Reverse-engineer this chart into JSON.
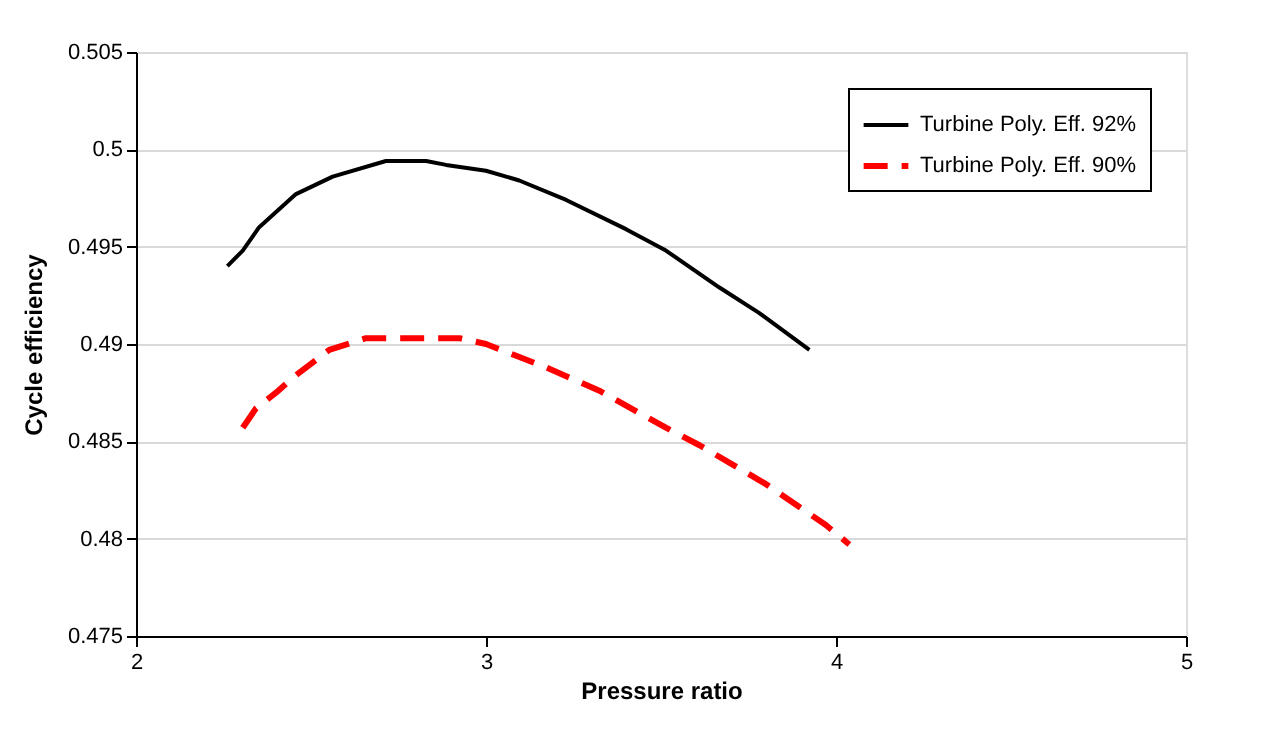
{
  "chart_data": {
    "type": "line",
    "xlabel": "Pressure ratio",
    "ylabel": "Cycle efficiency",
    "xlim": [
      2,
      5
    ],
    "xticks": [
      2,
      3,
      4,
      5
    ],
    "ylim": [
      0.475,
      0.505
    ],
    "yticks": [
      0.475,
      0.48,
      0.485,
      0.49,
      0.495,
      0.5,
      0.505
    ],
    "grid": "y",
    "legend": "top right",
    "marker": "none",
    "series": [
      {
        "name": "Turbine Poly. Eff. 92%",
        "color": "#000000",
        "line_style": "solid",
        "x": [
          2.261,
          2.305,
          2.352,
          2.457,
          2.562,
          2.714,
          2.829,
          2.886,
          3.0,
          3.095,
          3.229,
          3.4,
          3.514,
          3.667,
          3.78,
          3.924
        ],
        "values": [
          0.494,
          0.4948,
          0.496,
          0.4977,
          0.4986,
          0.4994,
          0.4994,
          0.4992,
          0.4989,
          0.4984,
          0.4974,
          0.4959,
          0.4948,
          0.4929,
          0.4916,
          0.4897
        ]
      },
      {
        "name": "Turbine Poly. Eff. 90%",
        "color": "#ff0000",
        "line_style": "dashed",
        "x": [
          2.305,
          2.343,
          2.4,
          2.457,
          2.552,
          2.657,
          2.733,
          2.924,
          3.0,
          3.171,
          3.324,
          3.514,
          3.61,
          3.8,
          3.971,
          4.038
        ],
        "values": [
          0.4857,
          0.4867,
          0.4875,
          0.4884,
          0.4897,
          0.4903,
          0.4903,
          0.4903,
          0.49,
          0.4888,
          0.4876,
          0.4857,
          0.4848,
          0.4828,
          0.4807,
          0.4797
        ]
      }
    ]
  }
}
